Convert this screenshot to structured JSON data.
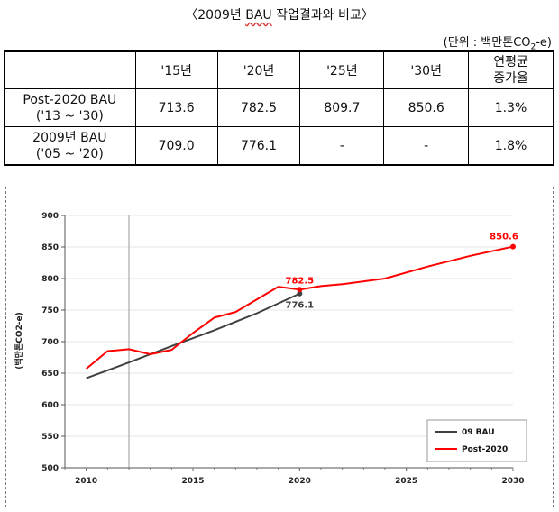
{
  "title": {
    "prefix": "〈2009년 ",
    "underlined": "BAU",
    "suffix": " 작업결과와 비교〉"
  },
  "unit_label": "(단위 : 백만톤CO",
  "unit_sub": "2",
  "unit_tail": "-e)",
  "table": {
    "headers": [
      "",
      "'15년",
      "'20년",
      "'25년",
      "'30년",
      "연평균 증가율"
    ],
    "header_growth_line1": "연평균",
    "header_growth_line2": "증가율",
    "rows": [
      {
        "name_line1": "Post-2020 BAU",
        "name_line2": "('13 ~ '30)",
        "cells": [
          "713.6",
          "782.5",
          "809.7",
          "850.6",
          "1.3%"
        ]
      },
      {
        "name_line1": "2009년 BAU",
        "name_line2": "('05 ~ '20)",
        "cells": [
          "709.0",
          "776.1",
          "-",
          "-",
          "1.8%"
        ]
      }
    ]
  },
  "chart_data": {
    "type": "line",
    "ylabel": "(백만톤CO2-e)",
    "xlim": [
      2009,
      2030
    ],
    "ylim": [
      500,
      900
    ],
    "x_ticks": [
      "2010",
      "2015",
      "2020",
      "2025",
      "2030"
    ],
    "y_ticks": [
      "500",
      "550",
      "600",
      "650",
      "700",
      "750",
      "800",
      "850",
      "900"
    ],
    "vertical_marker_x": 2012,
    "legend_position": "bottom-right",
    "series": [
      {
        "name": "09 BAU",
        "color": "#404040",
        "x": [
          2010,
          2012,
          2014,
          2016,
          2018,
          2020
        ],
        "y": [
          642,
          667,
          693,
          718,
          745,
          776.1
        ]
      },
      {
        "name": "Post-2020",
        "color": "#ff0000",
        "x": [
          2010,
          2011,
          2012,
          2013,
          2014,
          2015,
          2016,
          2017,
          2018,
          2019,
          2020,
          2021,
          2022,
          2024,
          2026,
          2028,
          2030
        ],
        "y": [
          657,
          685,
          688,
          680,
          687,
          713.6,
          738,
          747,
          767,
          787,
          782.5,
          788,
          791,
          800,
          819,
          836,
          850.6
        ]
      }
    ],
    "annotations": [
      {
        "text": "782.5",
        "color": "#ff0000"
      },
      {
        "text": "776.1",
        "color": "#404040"
      },
      {
        "text": "850.6",
        "color": "#ff0000"
      }
    ]
  }
}
